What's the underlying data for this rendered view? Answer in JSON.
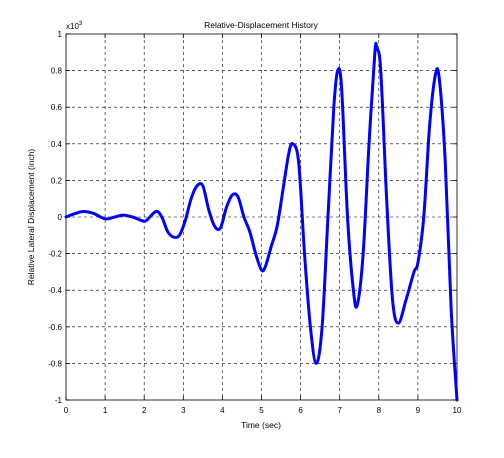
{
  "chart_data": {
    "type": "line",
    "title": "Relative-Displacement History",
    "xlabel": "Time (sec)",
    "ylabel": "Relative Lateral Displacement (inch)",
    "y_exponent_label": "x10",
    "y_exponent_power": "3",
    "xlim": [
      0,
      10
    ],
    "ylim": [
      -1,
      1
    ],
    "xticks": [
      "0",
      "1",
      "2",
      "3",
      "4",
      "5",
      "6",
      "7",
      "8",
      "9",
      "10"
    ],
    "yticks": [
      "-1",
      "-0.8",
      "-0.6",
      "-0.4",
      "-0.2",
      "0",
      "0.2",
      "0.4",
      "0.6",
      "0.8",
      "1"
    ],
    "grid": true,
    "series": [
      {
        "color": "#0000ff",
        "x": [
          0,
          0.25,
          0.45,
          0.7,
          1.0,
          1.25,
          1.45,
          1.7,
          1.95,
          2.05,
          2.3,
          2.45,
          2.6,
          2.75,
          2.9,
          3.05,
          3.2,
          3.35,
          3.5,
          3.65,
          3.8,
          3.95,
          4.1,
          4.25,
          4.4,
          4.55,
          4.7,
          4.85,
          5.0,
          5.1,
          5.25,
          5.4,
          5.55,
          5.7,
          5.8,
          5.95,
          6.1,
          6.25,
          6.4,
          6.55,
          6.7,
          6.85,
          6.95,
          7.05,
          7.2,
          7.35,
          7.45,
          7.6,
          7.75,
          7.9,
          7.95,
          8.05,
          8.2,
          8.35,
          8.5,
          8.7,
          8.9,
          9.0,
          9.15,
          9.3,
          9.45,
          9.55,
          9.7,
          9.85,
          10.0
        ],
        "y": [
          0,
          0.02,
          0.03,
          0.02,
          -0.01,
          0.0,
          0.01,
          0.0,
          -0.02,
          -0.02,
          0.03,
          0.0,
          -0.08,
          -0.11,
          -0.1,
          -0.02,
          0.1,
          0.17,
          0.17,
          0.04,
          -0.05,
          -0.06,
          0.05,
          0.12,
          0.11,
          0.0,
          -0.08,
          -0.2,
          -0.29,
          -0.27,
          -0.16,
          -0.05,
          0.15,
          0.35,
          0.4,
          0.3,
          -0.2,
          -0.6,
          -0.8,
          -0.6,
          0.0,
          0.6,
          0.8,
          0.7,
          0.0,
          -0.4,
          -0.48,
          -0.2,
          0.4,
          0.9,
          0.92,
          0.8,
          0.1,
          -0.45,
          -0.58,
          -0.45,
          -0.3,
          -0.25,
          0.0,
          0.5,
          0.78,
          0.75,
          0.3,
          -0.5,
          -1.0
        ]
      }
    ]
  }
}
